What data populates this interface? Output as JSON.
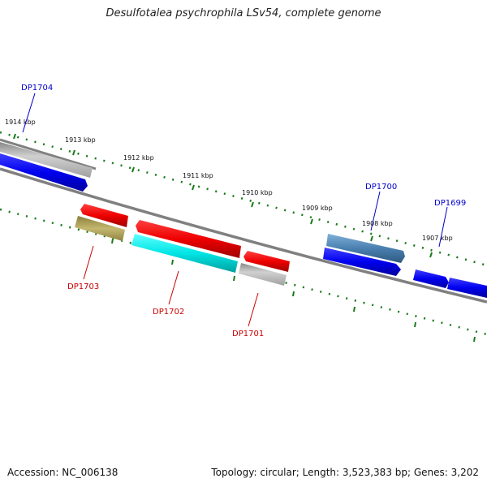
{
  "title": "Desulfotalea psychrophila LSv54, complete genome",
  "footer": {
    "accession": "Accession: NC_006138",
    "topology": "Topology: circular; Length: 3,523,383 bp; Genes: 3,202"
  },
  "scale_labels": [
    "1914 kbp",
    "1913 kbp",
    "1912 kbp",
    "1911 kbp",
    "1910 kbp",
    "1909 kbp",
    "1908 kbp",
    "1907 kbp"
  ],
  "gene_labels": {
    "dp1704": "DP1704",
    "dp1703": "DP1703",
    "dp1702": "DP1702",
    "dp1701": "DP1701",
    "dp1700": "DP1700",
    "dp1699": "DP1699"
  },
  "colors": {
    "backbone": "#808080",
    "tick": "#1a7a1a",
    "label_blue": "#0000cc",
    "label_red": "#cc0000",
    "gene_blue": "#0000ee",
    "gene_red": "#ee0000",
    "gene_cyan": "#00e5e5",
    "gene_gray": "#c0c0c0",
    "gene_olive": "#b5a860",
    "gene_steel": "#4a7fb0"
  }
}
